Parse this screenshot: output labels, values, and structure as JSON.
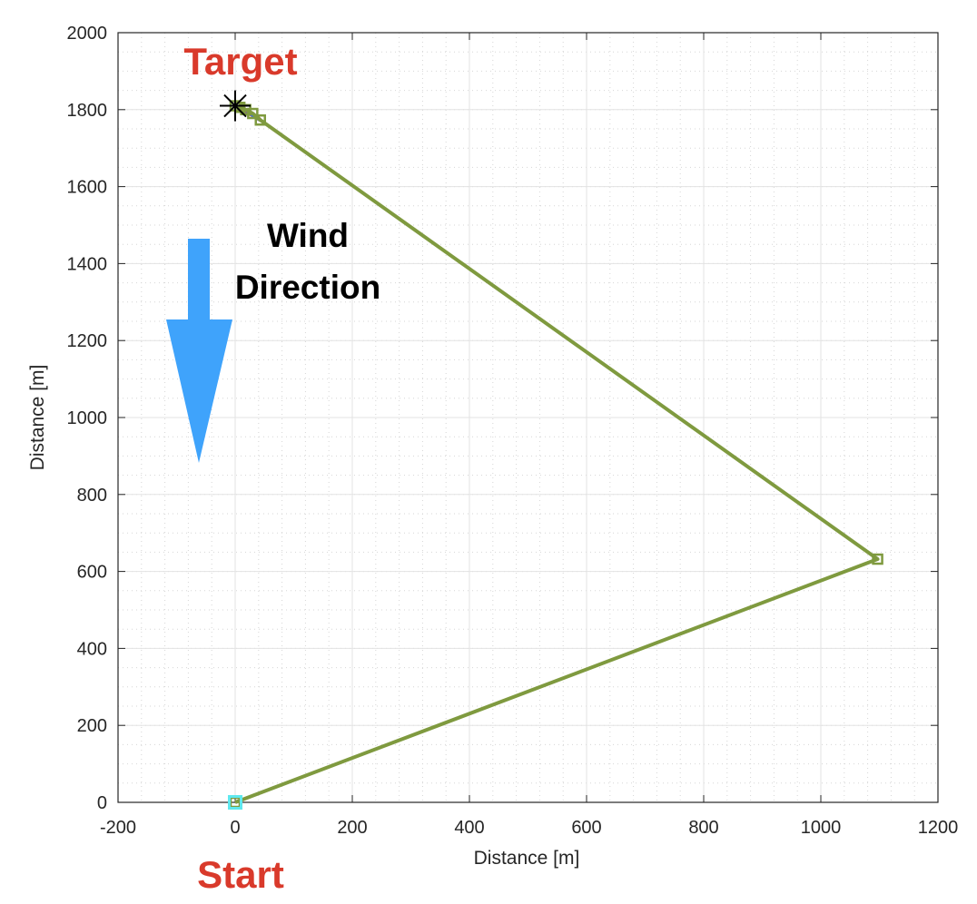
{
  "chart_data": {
    "type": "line",
    "title": "",
    "xlabel": "Distance [m]",
    "ylabel": "Distance [m]",
    "xlim": [
      -200,
      1200
    ],
    "ylim": [
      0,
      2000
    ],
    "x_ticks": [
      -200,
      0,
      200,
      400,
      600,
      800,
      1000,
      1200
    ],
    "y_ticks": [
      0,
      200,
      400,
      600,
      800,
      1000,
      1200,
      1400,
      1600,
      1800,
      2000
    ],
    "grid": true,
    "minor_grid": true,
    "series": [
      {
        "color": "#7f9a3f",
        "marker": "square",
        "points": [
          {
            "x": 0,
            "y": 0
          },
          {
            "x": 1097,
            "y": 632
          },
          {
            "x": 43,
            "y": 1773
          },
          {
            "x": 30,
            "y": 1790
          },
          {
            "x": 18,
            "y": 1800
          },
          {
            "x": 8,
            "y": 1806
          },
          {
            "x": 0,
            "y": 1810
          }
        ]
      }
    ],
    "start_marker": {
      "x": 0,
      "y": 0,
      "color": "#5fe8ee"
    },
    "target_marker": {
      "x": 0,
      "y": 1810,
      "color": "#000000"
    },
    "trail_colors": [
      "#e0a03a",
      "#7b4fa8",
      "#3b7fd0",
      "#d9532a"
    ],
    "annotations": {
      "target_label": "Target",
      "start_label": "Start",
      "wind_line1": "Wind",
      "wind_line2": "Direction"
    },
    "wind_arrow": {
      "color": "#3fa3fb",
      "direction": "down"
    }
  }
}
